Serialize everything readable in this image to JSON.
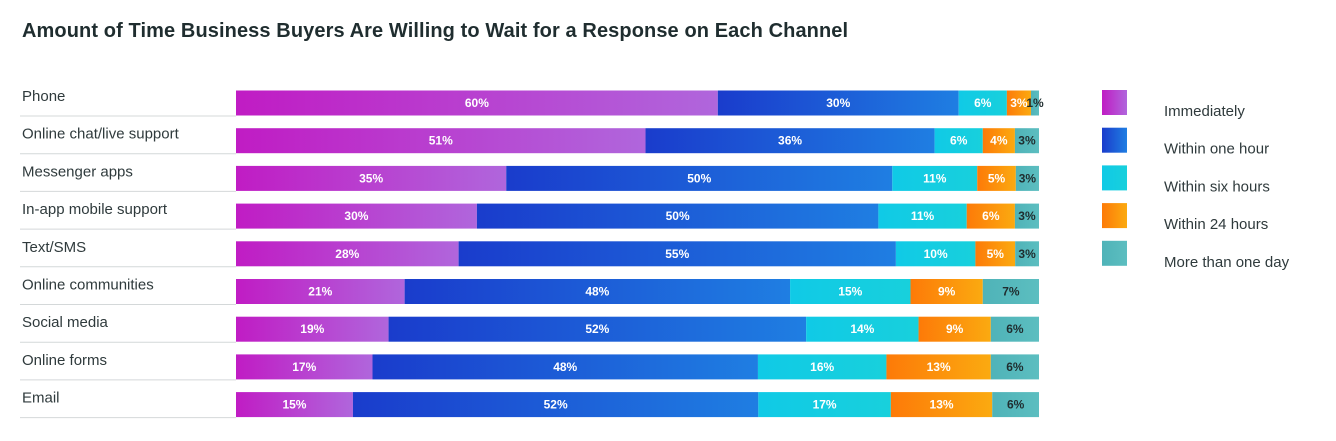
{
  "chart_data": {
    "type": "bar",
    "orientation": "horizontal",
    "stacked": true,
    "title": "Amount of Time Business Buyers Are Willing to Wait for a Response on Each Channel",
    "categories": [
      "Phone",
      "Online chat/live support",
      "Messenger apps",
      "In-app mobile support",
      "Text/SMS",
      "Online communities",
      "Social media",
      "Online forms",
      "Email"
    ],
    "series": [
      {
        "name": "Immediately",
        "color": "#c020c8",
        "values": [
          60,
          51,
          35,
          30,
          28,
          21,
          19,
          17,
          15
        ]
      },
      {
        "name": "Within one hour",
        "color": "#1a44d0",
        "values": [
          30,
          36,
          50,
          50,
          55,
          48,
          52,
          48,
          52
        ]
      },
      {
        "name": "Within six hours",
        "color": "#12cde3",
        "values": [
          6,
          6,
          11,
          11,
          10,
          15,
          14,
          16,
          17
        ]
      },
      {
        "name": "Within 24 hours",
        "color": "#fb8b05",
        "values": [
          3,
          4,
          5,
          6,
          5,
          9,
          9,
          13,
          13
        ]
      },
      {
        "name": "More than one day",
        "color": "#52b7bc",
        "values": [
          1,
          3,
          3,
          3,
          3,
          7,
          6,
          6,
          6
        ]
      }
    ],
    "value_suffix": "%",
    "xlim": [
      0,
      100
    ],
    "legend_position": "right",
    "grid": false
  }
}
